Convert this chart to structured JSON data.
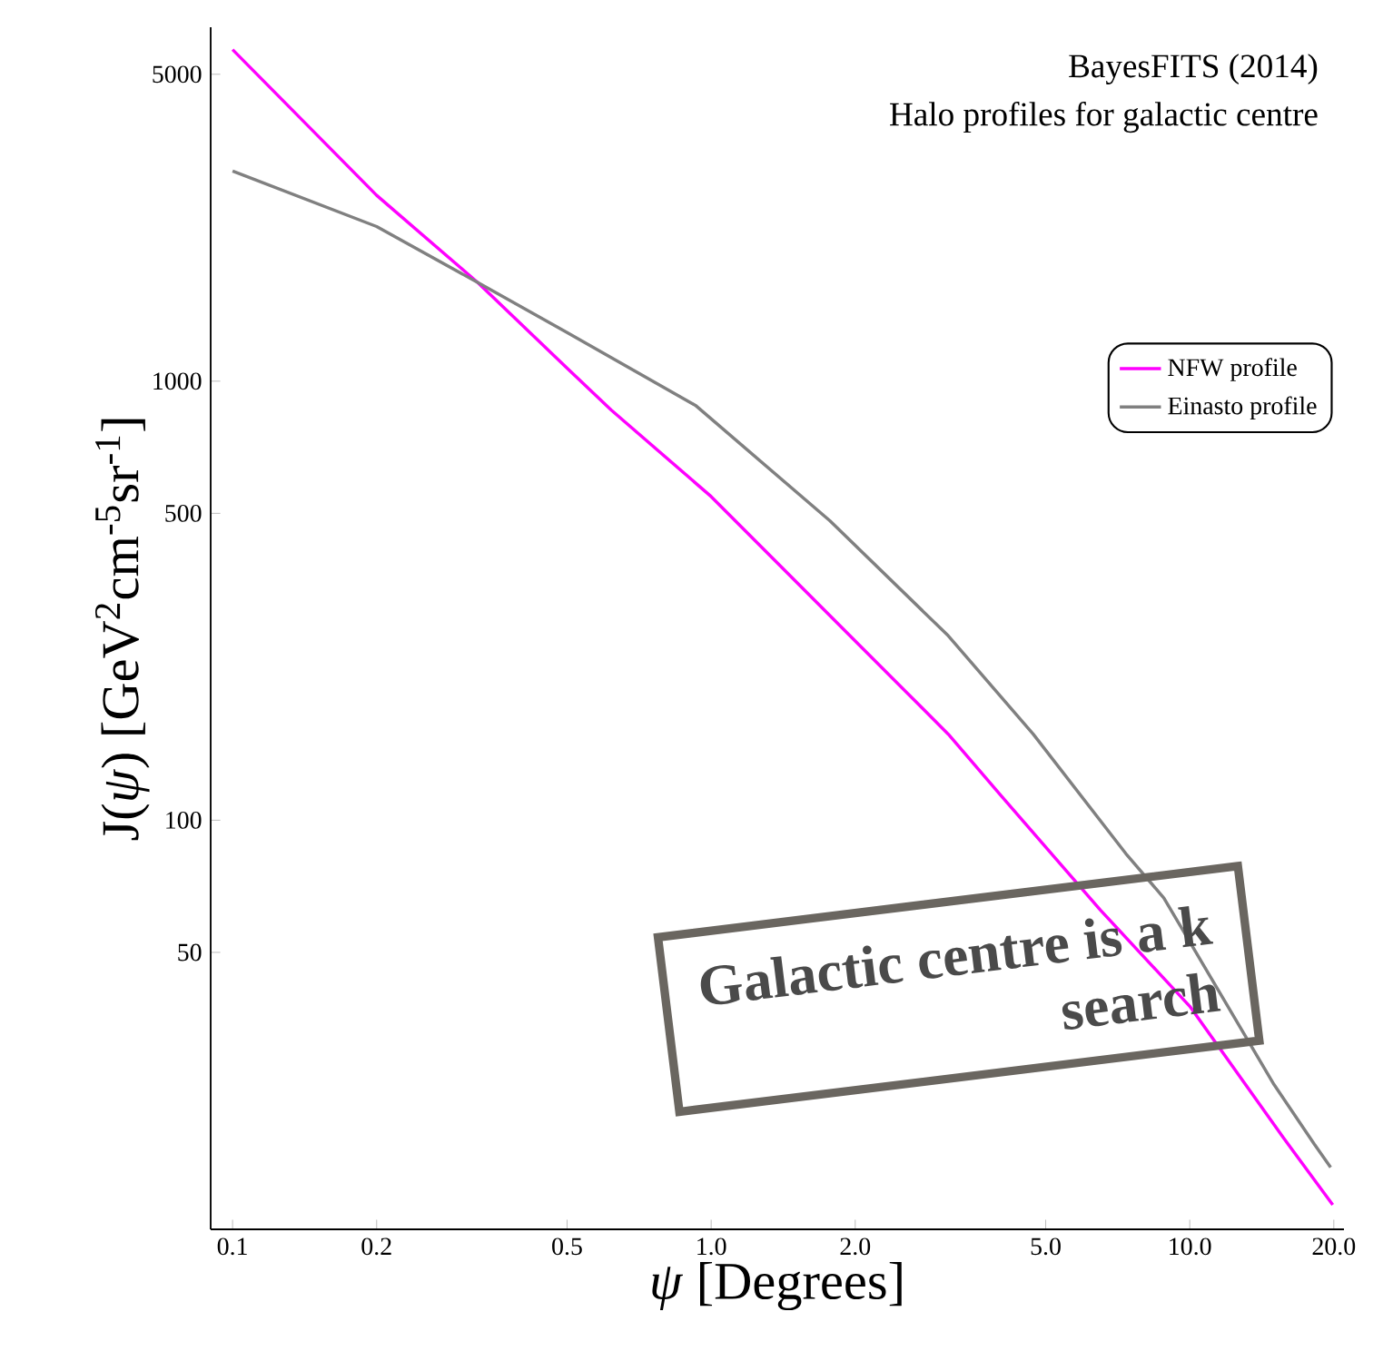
{
  "chart_data": {
    "type": "line",
    "title": "BayesFITS (2014)",
    "subtitle": "Halo profiles for galactic centre",
    "xlabel": "*ψ* [Degrees]",
    "ylabel": "J(*ψ*) [GeV$^{2}$cm$^{-5}$sr$^{-1}$]",
    "log": "xy",
    "xlim": [
      0.09,
      21
    ],
    "ylim": [
      11.7,
      6400
    ],
    "xticks": [
      {
        "value": 0.1,
        "label": "0.1"
      },
      {
        "value": 0.2,
        "label": "0.2"
      },
      {
        "value": 0.5,
        "label": "0.5"
      },
      {
        "value": 1,
        "label": "1.0"
      },
      {
        "value": 2,
        "label": "2.0"
      },
      {
        "value": 5,
        "label": "5.0"
      },
      {
        "value": 10,
        "label": "10.0"
      },
      {
        "value": 20,
        "label": "20.0"
      }
    ],
    "yticks": [
      50,
      100,
      500,
      1000,
      5000
    ],
    "grid": false,
    "legend": "right",
    "marker": "none",
    "line_style": "solid",
    "series": [
      {
        "name": "NFW profile",
        "color": "#ff00ff",
        "x": [
          0.1,
          0.2,
          0.325,
          0.5,
          0.618,
          1,
          1.39,
          2,
          3.13,
          4,
          6.5,
          10,
          15.7,
          19.9
        ],
        "values": [
          5690,
          2650,
          1679,
          1070,
          860,
          546,
          381,
          256,
          157,
          115,
          62.5,
          37.7,
          18.9,
          13.3
        ]
      },
      {
        "name": "Einasto profile",
        "color": "#808080",
        "x": [
          0.1,
          0.2,
          0.325,
          0.5,
          0.927,
          1.77,
          3.13,
          4.71,
          7.35,
          8.83,
          15,
          18.2,
          19.7
        ],
        "values": [
          3010,
          2250,
          1679,
          1290,
          881,
          481,
          263,
          157,
          84,
          66.5,
          25,
          18.3,
          16.2
        ]
      }
    ],
    "annotations": [
      "Galactic centre is a k",
      "search"
    ]
  }
}
